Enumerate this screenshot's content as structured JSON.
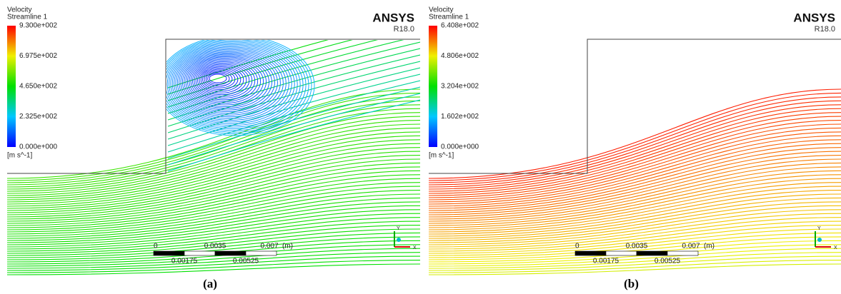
{
  "panels": [
    {
      "legend": {
        "title": "Velocity",
        "subtitle": "Streamline 1",
        "ticks": [
          "9.300e+002",
          "6.975e+002",
          "4.650e+002",
          "2.325e+002",
          "0.000e+000"
        ],
        "unit": "[m s^-1]"
      },
      "brand": "ANSYS",
      "version": "R18.0",
      "scale_bar": {
        "top_labels": [
          "0",
          "0.0035",
          "0.007"
        ],
        "unit": "(m)",
        "bottom_labels": [
          "0.00175",
          "0.00525"
        ]
      },
      "axes": {
        "y": "Y",
        "x": "X"
      },
      "caption": "(a)"
    },
    {
      "legend": {
        "title": "Velocity",
        "subtitle": "Streamline 1",
        "ticks": [
          "6.408e+002",
          "4.806e+002",
          "3.204e+002",
          "1.602e+002",
          "0.000e+000"
        ],
        "unit": "[m s^-1]"
      },
      "brand": "ANSYS",
      "version": "R18.0",
      "scale_bar": {
        "top_labels": [
          "0",
          "0.0035",
          "0.007"
        ],
        "unit": "(m)",
        "bottom_labels": [
          "0.00175",
          "0.00525"
        ]
      },
      "axes": {
        "y": "Y",
        "x": "X"
      },
      "caption": "(b)"
    }
  ]
}
